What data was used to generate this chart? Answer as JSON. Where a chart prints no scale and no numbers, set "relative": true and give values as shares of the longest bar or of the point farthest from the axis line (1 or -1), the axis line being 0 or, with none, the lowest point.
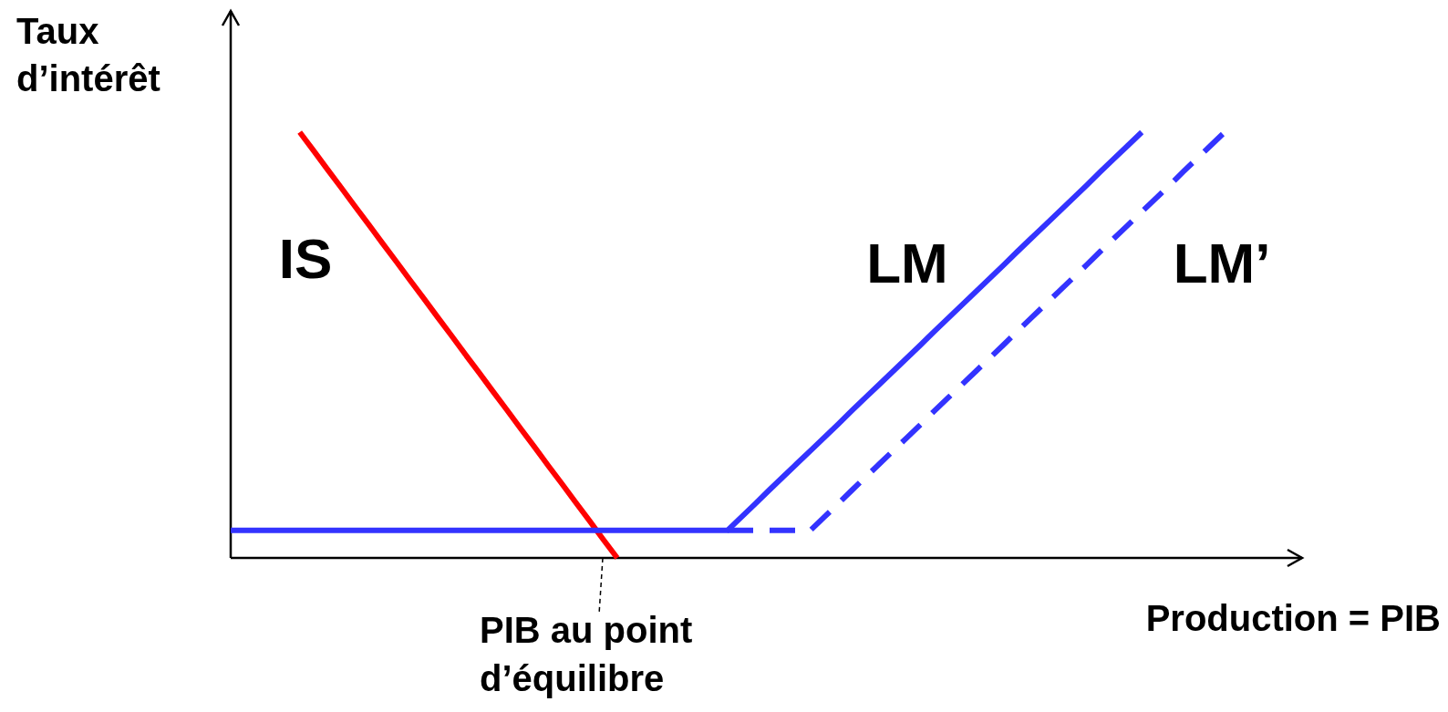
{
  "chart_data": {
    "type": "line",
    "relative": true,
    "ylabel": "Taux d’intérêt",
    "xlabel": "Production = PIB",
    "marker": "none",
    "categories": [
      null,
      null,
      null,
      null,
      null,
      null,
      null,
      null,
      null,
      null,
      null,
      null,
      null,
      null,
      null,
      null,
      null,
      null,
      null,
      null,
      null,
      null,
      null,
      null,
      null,
      null,
      null,
      null,
      null,
      null,
      null,
      null,
      null,
      null,
      null,
      null,
      null,
      null,
      null,
      null,
      null,
      null,
      null,
      null,
      null,
      null,
      null,
      null,
      null,
      null,
      null,
      null,
      null,
      null,
      null,
      null,
      null,
      null,
      null,
      null,
      null,
      null,
      null,
      null,
      null,
      null,
      null,
      null,
      null,
      null,
      null,
      null,
      null
    ],
    "series": [
      {
        "name": "IS",
        "color": "#ff0000",
        "line_style": "solid",
        "values": [
          null,
          null,
          null,
          null,
          null,
          1,
          0.957,
          0.913,
          0.87,
          0.826,
          0.783,
          0.739,
          0.696,
          0.652,
          0.609,
          0.565,
          0.522,
          0.478,
          0.435,
          0.391,
          0.348,
          0.304,
          0.261,
          0.217,
          0.174,
          0.13,
          0.087,
          0.043,
          0,
          null,
          null,
          null,
          null,
          null,
          null,
          null,
          null,
          null,
          null,
          null,
          null,
          null,
          null,
          null,
          null,
          null,
          null,
          null,
          null,
          null,
          null,
          null,
          null,
          null,
          null,
          null,
          null,
          null,
          null,
          null,
          null,
          null,
          null,
          null,
          null,
          null,
          null,
          null,
          null,
          null,
          null,
          null,
          null
        ]
      },
      {
        "name": "LM",
        "color": "#3333ff",
        "line_style": "solid",
        "values": [
          0.065,
          0.065,
          0.065,
          0.065,
          0.065,
          0.065,
          0.065,
          0.065,
          0.065,
          0.065,
          0.065,
          0.065,
          0.065,
          0.065,
          0.065,
          0.065,
          0.065,
          0.065,
          0.065,
          0.065,
          0.065,
          0.065,
          0.065,
          0.065,
          0.065,
          0.065,
          0.065,
          0.065,
          0.065,
          0.065,
          0.065,
          0.065,
          0.065,
          0.065,
          0.065,
          0.065,
          0.065,
          0.096,
          0.127,
          0.159,
          0.19,
          0.221,
          0.252,
          0.283,
          0.314,
          0.346,
          0.377,
          0.408,
          0.439,
          0.47,
          0.501,
          0.533,
          0.564,
          0.595,
          0.626,
          0.657,
          0.688,
          0.72,
          0.751,
          0.782,
          0.813,
          0.844,
          0.875,
          0.907,
          0.938,
          0.969,
          1,
          null,
          null,
          null,
          null,
          null,
          null
        ]
      },
      {
        "name": "LM’",
        "color": "#3333ff",
        "line_style": "dashed",
        "values": [
          null,
          null,
          null,
          null,
          null,
          null,
          null,
          null,
          null,
          null,
          null,
          null,
          null,
          null,
          null,
          null,
          null,
          null,
          null,
          null,
          null,
          null,
          null,
          null,
          null,
          null,
          null,
          null,
          null,
          null,
          null,
          null,
          null,
          null,
          null,
          null,
          0.065,
          0.065,
          0.065,
          0.065,
          0.065,
          0.065,
          0.065,
          0.096,
          0.127,
          0.159,
          0.19,
          0.221,
          0.252,
          0.283,
          0.314,
          0.346,
          0.377,
          0.408,
          0.439,
          0.47,
          0.501,
          0.533,
          0.564,
          0.595,
          0.626,
          0.657,
          0.688,
          0.72,
          0.751,
          0.782,
          0.813,
          0.844,
          0.875,
          0.907,
          0.938,
          0.969,
          1
        ]
      }
    ],
    "annotations": [
      "PIB au point d’équilibre"
    ]
  }
}
